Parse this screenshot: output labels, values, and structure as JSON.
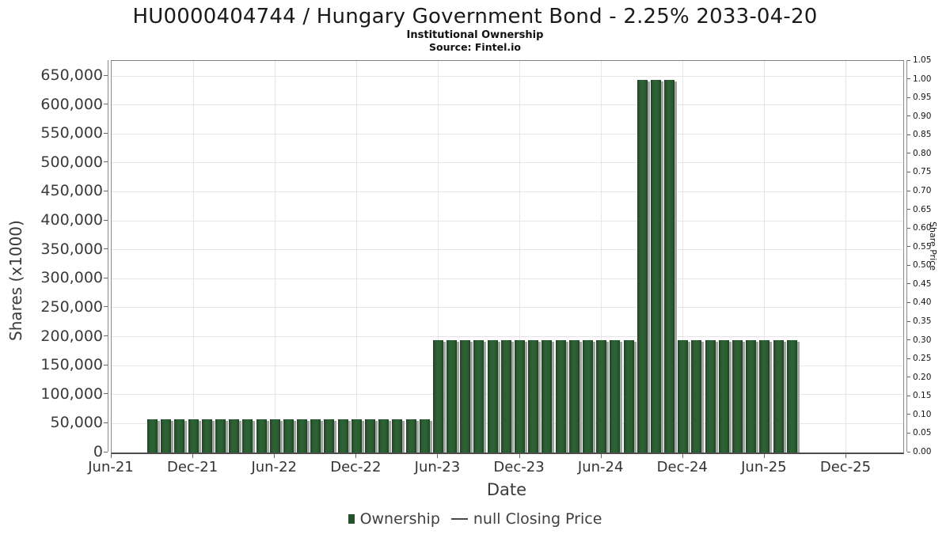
{
  "header": {
    "title": "HU0000404744 / Hungary Government Bond - 2.25% 2033-04-20",
    "subtitle": "Institutional Ownership",
    "source": "Source: Fintel.io"
  },
  "chart_data": {
    "type": "bar",
    "title": "HU0000404744 / Hungary Government Bond - 2.25% 2033-04-20",
    "subtitle": "Institutional Ownership",
    "source": "Source: Fintel.io",
    "xlabel": "Date",
    "ylabel_left": "Shares (x1000)",
    "ylabel_right": "Share Price",
    "grid": true,
    "legend_position": "bottom",
    "x_ticks": [
      "Jun-21",
      "Dec-21",
      "Jun-22",
      "Dec-22",
      "Jun-23",
      "Dec-23",
      "Jun-24",
      "Dec-24",
      "Jun-25",
      "Dec-25"
    ],
    "y_ticks_left": [
      "0",
      "50,000",
      "100,000",
      "150,000",
      "200,000",
      "250,000",
      "300,000",
      "350,000",
      "400,000",
      "450,000",
      "500,000",
      "550,000",
      "600,000",
      "650,000"
    ],
    "y_left_tick_step": 50000,
    "ylim_left": [
      0,
      676000
    ],
    "y_ticks_right": [
      "0.00",
      "0.05",
      "0.10",
      "0.15",
      "0.20",
      "0.25",
      "0.30",
      "0.35",
      "0.40",
      "0.45",
      "0.50",
      "0.55",
      "0.60",
      "0.65",
      "0.70",
      "0.75",
      "0.80",
      "0.85",
      "0.90",
      "0.95",
      "1.00",
      "1.05"
    ],
    "ylim_right": [
      0.0,
      1.05
    ],
    "series": [
      {
        "name": "Ownership",
        "unit": "shares x1000",
        "months": [
          "Sep-21",
          "Oct-21",
          "Nov-21",
          "Dec-21",
          "Jan-22",
          "Feb-22",
          "Mar-22",
          "Apr-22",
          "May-22",
          "Jun-22",
          "Jul-22",
          "Aug-22",
          "Sep-22",
          "Oct-22",
          "Nov-22",
          "Dec-22",
          "Jan-23",
          "Feb-23",
          "Mar-23",
          "Apr-23",
          "May-23",
          "Jun-23",
          "Jul-23",
          "Aug-23",
          "Sep-23",
          "Oct-23",
          "Nov-23",
          "Dec-23",
          "Jan-24",
          "Feb-24",
          "Mar-24",
          "Apr-24",
          "May-24",
          "Jun-24",
          "Jul-24",
          "Aug-24",
          "Sep-24",
          "Oct-24",
          "Nov-24",
          "Dec-24",
          "Jan-25",
          "Feb-25",
          "Mar-25",
          "Apr-25",
          "May-25",
          "Jun-25",
          "Jul-25",
          "Aug-25"
        ],
        "values": [
          57000,
          57000,
          57000,
          57000,
          57000,
          57000,
          57000,
          57000,
          57000,
          57000,
          57000,
          57000,
          57000,
          57000,
          57000,
          57000,
          57000,
          57000,
          57000,
          57000,
          57000,
          194000,
          194000,
          194000,
          194000,
          194000,
          194000,
          194000,
          194000,
          194000,
          194000,
          194000,
          194000,
          194000,
          194000,
          194000,
          643000,
          643000,
          643000,
          194000,
          194000,
          194000,
          194000,
          194000,
          194000,
          194000,
          194000,
          194000
        ]
      },
      {
        "name": "null Closing Price",
        "type": "line",
        "values": []
      }
    ]
  },
  "legend": {
    "items": [
      {
        "label": "Ownership",
        "marker": "square"
      },
      {
        "label": "null Closing Price",
        "marker": "line"
      }
    ]
  },
  "colors": {
    "bar_fill": "#2b5c32",
    "bar_edge": "#1d4223",
    "bar_shadow": "#a4a4a4",
    "legend_square": "#24512b",
    "gridline": "#e6e6e6",
    "axis_spine": "#8a8a8a",
    "text_dark": "#1a1a1a",
    "text_axis": "#3a3a3a"
  }
}
